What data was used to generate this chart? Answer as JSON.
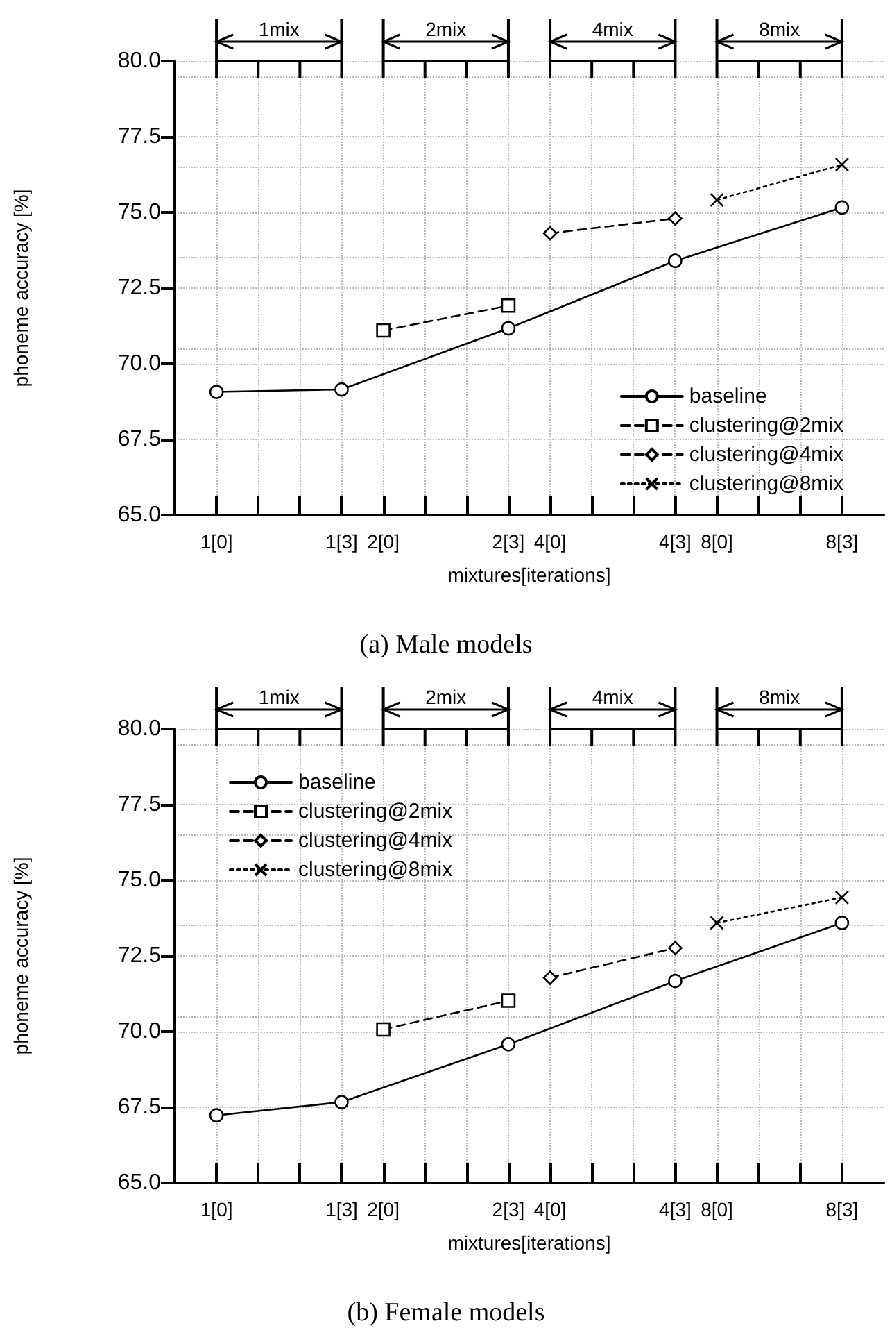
{
  "chart_data": [
    {
      "type": "line",
      "title": "(a) Male models",
      "xlabel": "mixtures[iterations]",
      "ylabel": "phoneme accuracy [%]",
      "categories": [
        null,
        "1[0]",
        null,
        null,
        "1[3]",
        "2[0]",
        null,
        null,
        "2[3]",
        "4[0]",
        null,
        null,
        "4[3]",
        "8[0]",
        null,
        null,
        "8[3]",
        null
      ],
      "ylim": [
        65,
        80
      ],
      "yticks": [
        {
          "value": 65,
          "label": "65.0"
        },
        {
          "value": 67.5,
          "label": "67.5"
        },
        {
          "value": 70,
          "label": "70.0"
        },
        {
          "value": 72.5,
          "label": "72.5"
        },
        {
          "value": 75,
          "label": "75.0"
        },
        {
          "value": 77.5,
          "label": "77.5"
        },
        {
          "value": 80,
          "label": "80.0"
        }
      ],
      "annotations": [
        "1mix",
        "2mix",
        "4mix",
        "8mix"
      ],
      "grid": true,
      "legend": "bottom right",
      "series": [
        {
          "name": "baseline",
          "color": "#000000",
          "marker": "circle",
          "line_style": "solid",
          "values": [
            null,
            69.07,
            null,
            null,
            69.15,
            null,
            null,
            null,
            71.17,
            null,
            null,
            null,
            73.4,
            null,
            null,
            null,
            75.16,
            null
          ]
        },
        {
          "name": "clustering@2mix",
          "color": "#000000",
          "marker": "square",
          "line_style": "dashed",
          "values": [
            null,
            null,
            null,
            null,
            null,
            71.1,
            null,
            null,
            71.92,
            null,
            null,
            null,
            null,
            null,
            null,
            null,
            null,
            null
          ]
        },
        {
          "name": "clustering@4mix",
          "color": "#000000",
          "marker": "diamond",
          "line_style": "dashed",
          "values": [
            null,
            null,
            null,
            null,
            null,
            null,
            null,
            null,
            null,
            74.31,
            null,
            null,
            74.8,
            null,
            null,
            null,
            null,
            null
          ]
        },
        {
          "name": "clustering@8mix",
          "color": "#000000",
          "marker": "cross",
          "line_style": "dotted",
          "values": [
            null,
            null,
            null,
            null,
            null,
            null,
            null,
            null,
            null,
            null,
            null,
            null,
            null,
            75.41,
            null,
            null,
            76.58,
            null
          ]
        }
      ]
    },
    {
      "type": "line",
      "title": "(b) Female models",
      "xlabel": "mixtures[iterations]",
      "ylabel": "phoneme accuracy [%]",
      "categories": [
        null,
        "1[0]",
        null,
        null,
        "1[3]",
        "2[0]",
        null,
        null,
        "2[3]",
        "4[0]",
        null,
        null,
        "4[3]",
        "8[0]",
        null,
        null,
        "8[3]",
        null
      ],
      "ylim": [
        65,
        80
      ],
      "yticks": [
        {
          "value": 65,
          "label": "65.0"
        },
        {
          "value": 67.5,
          "label": "67.5"
        },
        {
          "value": 70,
          "label": "70.0"
        },
        {
          "value": 72.5,
          "label": "72.5"
        },
        {
          "value": 75,
          "label": "75.0"
        },
        {
          "value": 77.5,
          "label": "77.5"
        },
        {
          "value": 80,
          "label": "80.0"
        }
      ],
      "annotations": [
        "1mix",
        "2mix",
        "4mix",
        "8mix"
      ],
      "grid": true,
      "legend": "top left",
      "series": [
        {
          "name": "baseline",
          "color": "#000000",
          "marker": "circle",
          "line_style": "solid",
          "values": [
            null,
            67.23,
            null,
            null,
            67.67,
            null,
            null,
            null,
            69.58,
            null,
            null,
            null,
            71.67,
            null,
            null,
            null,
            73.59,
            null
          ]
        },
        {
          "name": "clustering@2mix",
          "color": "#000000",
          "marker": "square",
          "line_style": "dashed",
          "values": [
            null,
            null,
            null,
            null,
            null,
            70.07,
            null,
            null,
            71.02,
            null,
            null,
            null,
            null,
            null,
            null,
            null,
            null,
            null
          ]
        },
        {
          "name": "clustering@4mix",
          "color": "#000000",
          "marker": "diamond",
          "line_style": "dashed",
          "values": [
            null,
            null,
            null,
            null,
            null,
            null,
            null,
            null,
            null,
            71.78,
            null,
            null,
            72.76,
            null,
            null,
            null,
            null,
            null
          ]
        },
        {
          "name": "clustering@8mix",
          "color": "#000000",
          "marker": "cross",
          "line_style": "dotted",
          "values": [
            null,
            null,
            null,
            null,
            null,
            null,
            null,
            null,
            null,
            null,
            null,
            null,
            null,
            73.59,
            null,
            null,
            74.43,
            null
          ]
        }
      ]
    }
  ]
}
